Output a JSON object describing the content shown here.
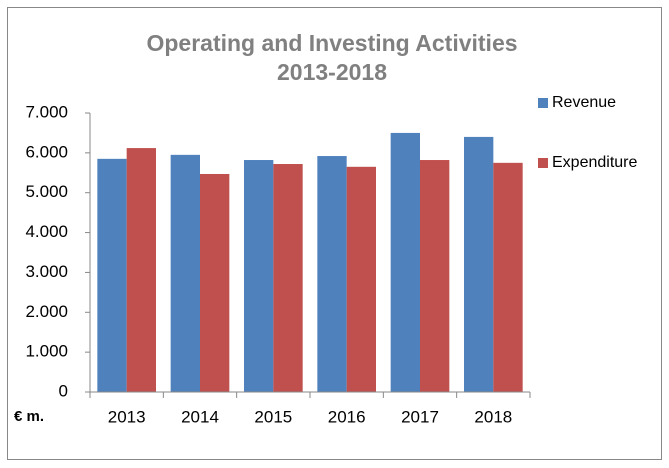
{
  "chart_data": {
    "type": "bar",
    "title": [
      "Operating and Investing Activities",
      "2013-2018"
    ],
    "y_unit_label": "€ m.",
    "categories": [
      "2013",
      "2014",
      "2015",
      "2016",
      "2017",
      "2018"
    ],
    "series": [
      {
        "name": "Revenue",
        "color": "#4f81bd",
        "values": [
          5850,
          5950,
          5820,
          5920,
          6500,
          6400
        ]
      },
      {
        "name": "Expenditure",
        "color": "#c0504d",
        "values": [
          6120,
          5470,
          5720,
          5650,
          5820,
          5750
        ]
      }
    ],
    "ylim": [
      0,
      7000
    ],
    "yticks": [
      0,
      {
        "value": 1000,
        "label": "1.000"
      },
      {
        "value": 2000,
        "label": "2.000"
      },
      {
        "value": 3000,
        "label": "3.000"
      },
      {
        "value": 4000,
        "label": "4.000"
      },
      {
        "value": 5000,
        "label": "5.000"
      },
      {
        "value": 6000,
        "label": "6.000"
      },
      {
        "value": 7000,
        "label": "7.000"
      }
    ],
    "grid": false,
    "legend": "right"
  }
}
